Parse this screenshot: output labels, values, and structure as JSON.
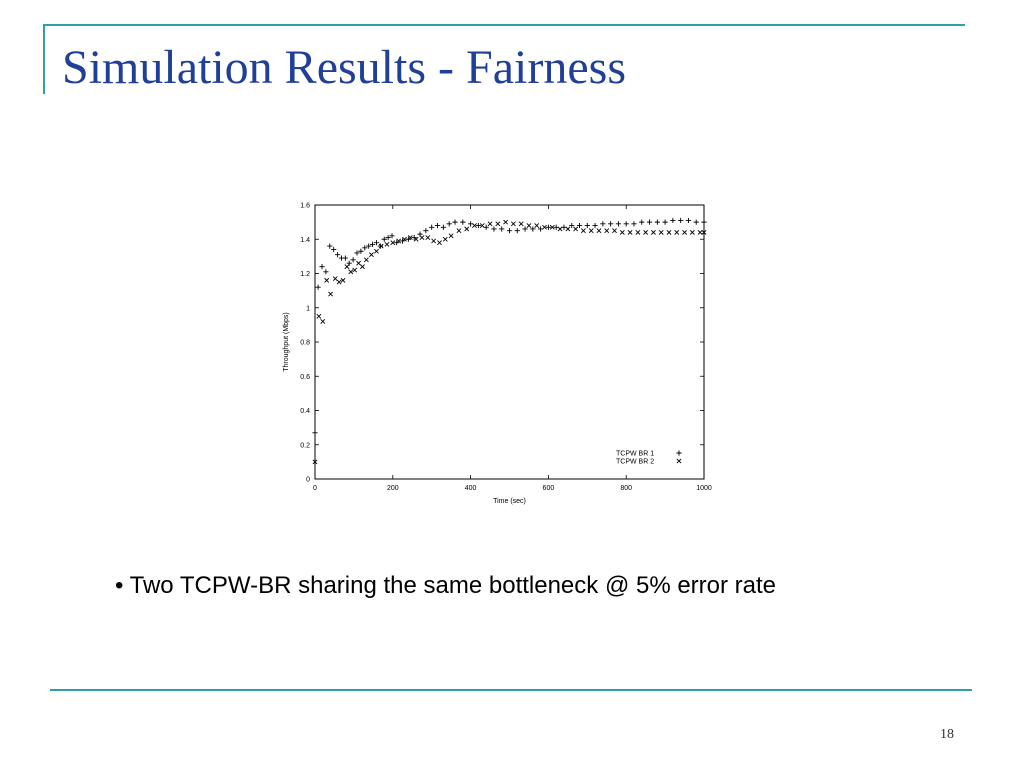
{
  "slide": {
    "title": "Simulation Results - Fairness",
    "bullet": "• Two TCPW-BR sharing the same bottleneck @ 5% error rate",
    "page_number": "18",
    "colors": {
      "title": "#1f3f99",
      "rule": "#2f9fa6",
      "text": "#000000"
    }
  },
  "chart_data": {
    "type": "scatter",
    "xlabel": "Time (sec)",
    "ylabel": "Throughput (Mbps)",
    "xlim": [
      0,
      1000
    ],
    "ylim": [
      0,
      1.6
    ],
    "xticks": [
      0,
      200,
      400,
      600,
      800,
      1000
    ],
    "yticks": [
      0,
      0.2,
      0.4,
      0.6,
      0.8,
      1,
      1.2,
      1.4,
      1.6
    ],
    "xtick_labels": [
      "0",
      "200",
      "400",
      "600",
      "800",
      "1000"
    ],
    "ytick_labels": [
      "0",
      "0.2",
      "0.4",
      "0.6",
      "0.8",
      "1",
      "1.2",
      "1.4",
      "1.6"
    ],
    "grid": false,
    "legend": "bottom-right",
    "series": [
      {
        "name": "TCPW BR 1",
        "marker": "+",
        "x": [
          0,
          8,
          18,
          28,
          38,
          48,
          58,
          68,
          78,
          88,
          98,
          108,
          118,
          128,
          138,
          148,
          158,
          168,
          178,
          188,
          198,
          210,
          225,
          240,
          255,
          270,
          285,
          300,
          315,
          330,
          345,
          360,
          380,
          400,
          420,
          440,
          460,
          480,
          500,
          520,
          540,
          560,
          580,
          600,
          620,
          640,
          660,
          680,
          700,
          720,
          740,
          760,
          780,
          800,
          820,
          840,
          860,
          880,
          900,
          920,
          940,
          960,
          980,
          1000
        ],
        "y": [
          0.27,
          1.12,
          1.24,
          1.21,
          1.36,
          1.34,
          1.31,
          1.29,
          1.29,
          1.26,
          1.28,
          1.32,
          1.33,
          1.35,
          1.36,
          1.37,
          1.38,
          1.36,
          1.4,
          1.41,
          1.42,
          1.38,
          1.39,
          1.4,
          1.41,
          1.43,
          1.45,
          1.47,
          1.48,
          1.47,
          1.49,
          1.5,
          1.5,
          1.49,
          1.48,
          1.47,
          1.46,
          1.46,
          1.45,
          1.45,
          1.46,
          1.46,
          1.46,
          1.47,
          1.47,
          1.47,
          1.48,
          1.48,
          1.48,
          1.48,
          1.49,
          1.49,
          1.49,
          1.49,
          1.49,
          1.5,
          1.5,
          1.5,
          1.5,
          1.51,
          1.51,
          1.51,
          1.5,
          1.5
        ]
      },
      {
        "name": "TCPW BR 2",
        "marker": "x",
        "x": [
          0,
          10,
          20,
          30,
          40,
          52,
          62,
          72,
          82,
          92,
          102,
          112,
          122,
          132,
          145,
          158,
          170,
          185,
          200,
          215,
          230,
          245,
          260,
          275,
          290,
          305,
          320,
          335,
          350,
          370,
          390,
          410,
          430,
          450,
          470,
          490,
          510,
          530,
          550,
          570,
          590,
          610,
          630,
          650,
          670,
          690,
          710,
          730,
          750,
          770,
          790,
          810,
          830,
          850,
          870,
          890,
          910,
          930,
          950,
          970,
          990,
          1000
        ],
        "y": [
          0.1,
          0.95,
          0.92,
          1.16,
          1.08,
          1.17,
          1.15,
          1.16,
          1.24,
          1.21,
          1.22,
          1.26,
          1.24,
          1.28,
          1.31,
          1.33,
          1.36,
          1.37,
          1.38,
          1.39,
          1.4,
          1.41,
          1.4,
          1.41,
          1.41,
          1.39,
          1.38,
          1.4,
          1.42,
          1.45,
          1.46,
          1.48,
          1.48,
          1.49,
          1.49,
          1.5,
          1.49,
          1.49,
          1.48,
          1.48,
          1.47,
          1.47,
          1.46,
          1.46,
          1.46,
          1.45,
          1.45,
          1.45,
          1.45,
          1.45,
          1.44,
          1.44,
          1.44,
          1.44,
          1.44,
          1.44,
          1.44,
          1.44,
          1.44,
          1.44,
          1.44,
          1.44
        ]
      }
    ]
  }
}
